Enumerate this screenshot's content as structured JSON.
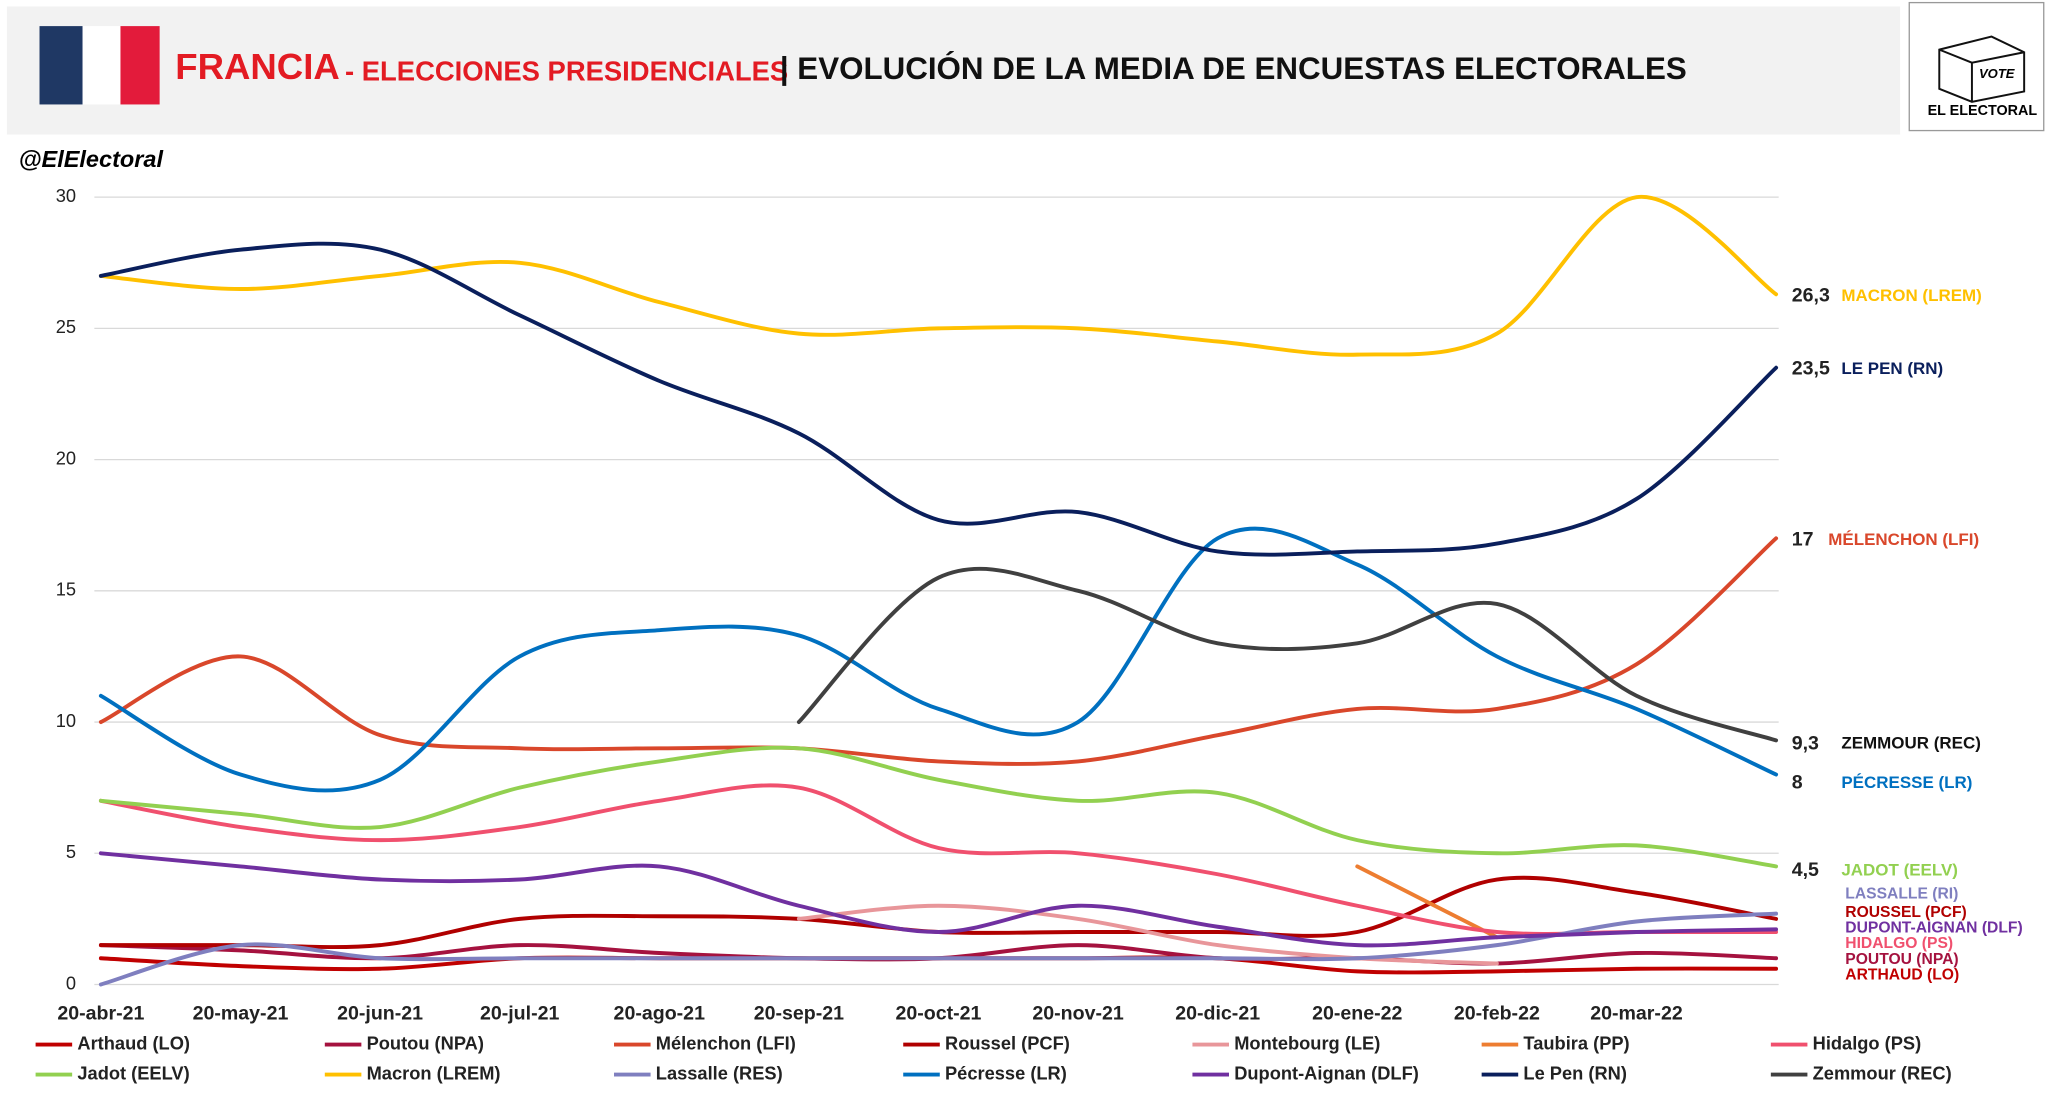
{
  "chart_data": {
    "type": "line",
    "title": "FRANCIA",
    "subtitle": "- ELECCIONES PRESIDENCIALES",
    "heading": "| EVOLUCIÓN DE LA MEDIA DE ENCUESTAS ELECTORALES",
    "source": "@ElElectoral",
    "logo": {
      "vote": "VOTE",
      "name": "EL ELECTORAL"
    },
    "categories": [
      "20-abr-21",
      "20-may-21",
      "20-jun-21",
      "20-jul-21",
      "20-ago-21",
      "20-sep-21",
      "20-oct-21",
      "20-nov-21",
      "20-dic-21",
      "20-ene-22",
      "20-feb-22",
      "20-mar-22",
      null
    ],
    "ylim": [
      0,
      30
    ],
    "yticks": [
      0,
      5,
      10,
      15,
      20,
      25,
      30
    ],
    "grid": true,
    "series": [
      {
        "name": "Arthaud (LO)",
        "label": "ARTHAUD (LO)",
        "color": "#c00000",
        "values": [
          1,
          0.7,
          0.6,
          1,
          1,
          1,
          1,
          1,
          1,
          0.5,
          0.5,
          0.6,
          0.6
        ]
      },
      {
        "name": "Poutou (NPA)",
        "label": "POUTOU (NPA)",
        "color": "#a5123f",
        "values": [
          1.5,
          1.3,
          1,
          1.5,
          1.2,
          1,
          1,
          1.5,
          1,
          1,
          0.8,
          1.2,
          1
        ]
      },
      {
        "name": "Mélenchon (LFI)",
        "label": "MÉLENCHON (LFI)",
        "color": "#d9472b",
        "values": [
          10,
          12.5,
          9.5,
          9,
          9,
          9,
          8.5,
          8.5,
          9.5,
          10.5,
          10.5,
          12.2,
          17
        ],
        "value_labels": [
          null,
          null,
          null,
          null,
          null,
          null,
          null,
          null,
          null,
          null,
          null,
          null,
          "17"
        ]
      },
      {
        "name": "Roussel (PCF)",
        "label": "ROUSSEL (PCF)",
        "color": "#b00000",
        "values": [
          1.5,
          1.5,
          1.5,
          2.5,
          2.6,
          2.5,
          2,
          2,
          2,
          2,
          4,
          3.5,
          2.5
        ]
      },
      {
        "name": "Montebourg (LE)",
        "color": "#e8969a",
        "values": [
          null,
          null,
          null,
          null,
          null,
          2.5,
          3,
          2.5,
          1.5,
          1,
          0.8,
          null,
          null
        ]
      },
      {
        "name": "Taubira (PP)",
        "color": "#ed7d31",
        "values": [
          null,
          null,
          null,
          null,
          null,
          null,
          null,
          null,
          null,
          4.5,
          1.8,
          null,
          null
        ]
      },
      {
        "name": "Hidalgo (PS)",
        "label": "HIDALGO (PS)",
        "color": "#f0506e",
        "values": [
          7,
          6,
          5.5,
          6,
          7,
          7.5,
          5.2,
          5,
          4.2,
          3,
          2,
          2,
          2
        ]
      },
      {
        "name": "Jadot (EELV)",
        "label": "JADOT (EELV)",
        "color": "#92d050",
        "values": [
          7,
          6.5,
          6,
          7.5,
          8.5,
          9,
          7.8,
          7,
          7.3,
          5.5,
          5,
          5.3,
          4.5
        ],
        "value_labels": [
          null,
          null,
          null,
          null,
          null,
          null,
          null,
          null,
          null,
          null,
          null,
          null,
          "4,5"
        ]
      },
      {
        "name": "Macron (LREM)",
        "label": "MACRON (LREM)",
        "color": "#ffc000",
        "values": [
          27,
          26.5,
          27,
          27.5,
          26,
          24.8,
          25,
          25,
          24.5,
          24,
          24.8,
          30,
          26.3
        ],
        "value_labels": [
          null,
          null,
          null,
          null,
          null,
          null,
          null,
          null,
          null,
          null,
          null,
          null,
          "26,3"
        ]
      },
      {
        "name": "Lassalle (RES)",
        "label": "LASSALLE (RI)",
        "color": "#7f7fbf",
        "values": [
          0,
          1.5,
          1,
          1,
          1,
          1,
          1,
          1,
          1,
          1,
          1.5,
          2.4,
          2.7
        ]
      },
      {
        "name": "Pécresse (LR)",
        "label": "PÉCRESSE (LR)",
        "color": "#0070c0",
        "values": [
          11,
          8,
          7.8,
          12.5,
          13.5,
          13.3,
          10.5,
          10,
          17,
          16,
          12.5,
          10.5,
          8
        ],
        "value_labels": [
          null,
          null,
          null,
          null,
          null,
          null,
          null,
          null,
          null,
          null,
          null,
          null,
          "8"
        ]
      },
      {
        "name": "Dupont-Aignan (DLF)",
        "label": "DUPONT-AIGNAN (DLF)",
        "color": "#7030a0",
        "values": [
          5,
          4.5,
          4,
          4,
          4.5,
          3,
          2,
          3,
          2.2,
          1.5,
          1.8,
          2,
          2.1
        ]
      },
      {
        "name": "Le Pen (RN)",
        "label": "LE PEN (RN)",
        "color": "#0a1f5c",
        "values": [
          27,
          28,
          28,
          25.5,
          23,
          21,
          17.7,
          18,
          16.5,
          16.5,
          16.8,
          18.5,
          23.5
        ],
        "value_labels": [
          null,
          null,
          null,
          null,
          null,
          null,
          null,
          null,
          null,
          null,
          null,
          null,
          "23,5"
        ]
      },
      {
        "name": "Zemmour (REC)",
        "label": "ZEMMOUR (REC)",
        "color": "#404040",
        "values": [
          null,
          null,
          null,
          null,
          null,
          10,
          15.5,
          15,
          13,
          13,
          14.5,
          11,
          9.3
        ],
        "value_labels": [
          null,
          null,
          null,
          null,
          null,
          null,
          null,
          null,
          null,
          null,
          null,
          null,
          "9,3"
        ]
      }
    ]
  }
}
